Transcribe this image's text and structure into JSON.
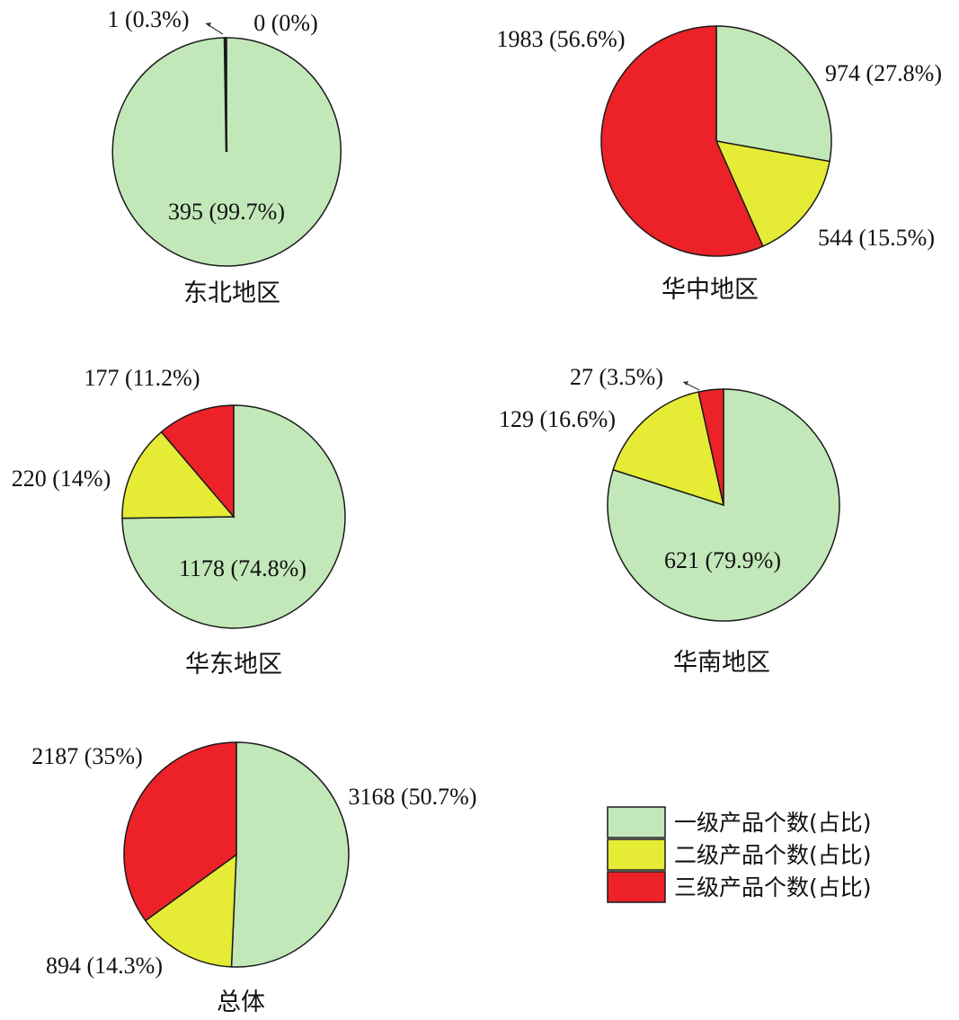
{
  "colors": {
    "level1": "#c2e8b9",
    "level2": "#e6ec36",
    "level3": "#ec2228",
    "stroke": "#1a1a1a"
  },
  "legend": [
    {
      "key": "level1",
      "label": "一级产品个数(占比)"
    },
    {
      "key": "level2",
      "label": "二级产品个数(占比)"
    },
    {
      "key": "level3",
      "label": "三级产品个数(占比)"
    }
  ],
  "chart_data": [
    {
      "type": "pie",
      "title": "东北地区",
      "categories": [
        "一级产品个数(占比)",
        "二级产品个数(占比)",
        "三级产品个数(占比)"
      ],
      "values": [
        395,
        0,
        1
      ],
      "labels": [
        "395 (99.7%)",
        "0 (0%)",
        "1 (0.3%)"
      ]
    },
    {
      "type": "pie",
      "title": "华中地区",
      "categories": [
        "一级产品个数(占比)",
        "二级产品个数(占比)",
        "三级产品个数(占比)"
      ],
      "values": [
        974,
        544,
        1983
      ],
      "labels": [
        "974 (27.8%)",
        "544 (15.5%)",
        "1983 (56.6%)"
      ]
    },
    {
      "type": "pie",
      "title": "华东地区",
      "categories": [
        "一级产品个数(占比)",
        "二级产品个数(占比)",
        "三级产品个数(占比)"
      ],
      "values": [
        1178,
        220,
        177
      ],
      "labels": [
        "1178 (74.8%)",
        "220 (14%)",
        "177 (11.2%)"
      ]
    },
    {
      "type": "pie",
      "title": "华南地区",
      "categories": [
        "一级产品个数(占比)",
        "二级产品个数(占比)",
        "三级产品个数(占比)"
      ],
      "values": [
        621,
        129,
        27
      ],
      "labels": [
        "621 (79.9%)",
        "129 (16.6%)",
        "27 (3.5%)"
      ]
    },
    {
      "type": "pie",
      "title": "总体",
      "categories": [
        "一级产品个数(占比)",
        "二级产品个数(占比)",
        "三级产品个数(占比)"
      ],
      "values": [
        3168,
        894,
        2187
      ],
      "labels": [
        "3168 (50.7%)",
        "894 (14.3%)",
        "2187 (35%)"
      ]
    }
  ]
}
